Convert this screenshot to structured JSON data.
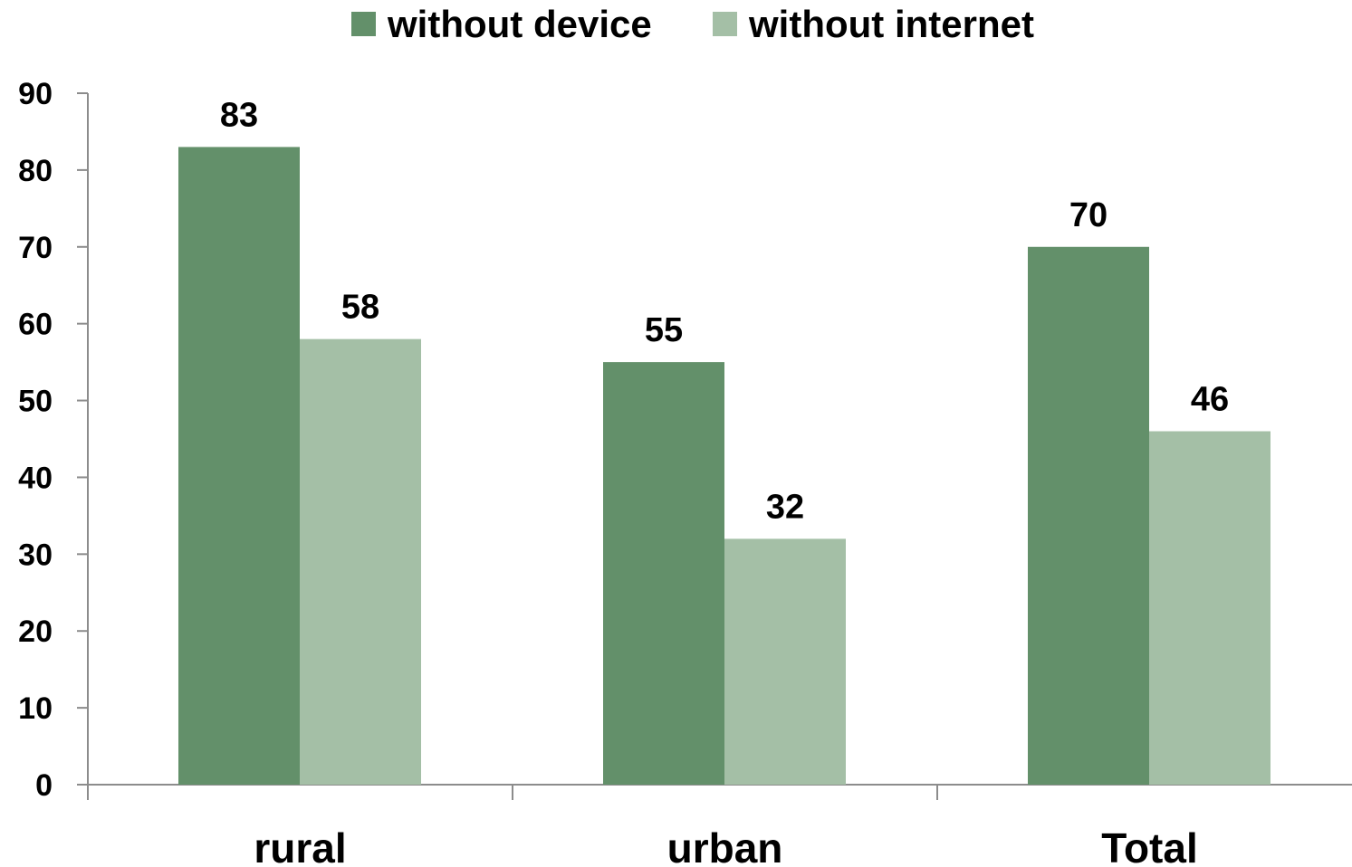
{
  "chart_data": {
    "type": "bar",
    "categories": [
      "rural",
      "urban",
      "Total"
    ],
    "series": [
      {
        "name": "without device",
        "values": [
          83,
          55,
          70
        ],
        "labels": [
          "83",
          "55",
          "70"
        ],
        "color": "#63906a"
      },
      {
        "name": "without internet",
        "values": [
          58,
          32,
          46
        ],
        "labels": [
          "58",
          "32",
          "46"
        ],
        "color": "#a4bfa6"
      }
    ],
    "ylim": [
      0,
      90
    ],
    "yticks": [
      0,
      10,
      20,
      30,
      40,
      50,
      60,
      70,
      80,
      90
    ],
    "ytick_labels": [
      "0",
      "10",
      "20",
      "30",
      "40",
      "50",
      "60",
      "70",
      "80",
      "90"
    ],
    "title": "",
    "xlabel": "",
    "ylabel": "",
    "grid": false,
    "legend_position": "top-center"
  }
}
